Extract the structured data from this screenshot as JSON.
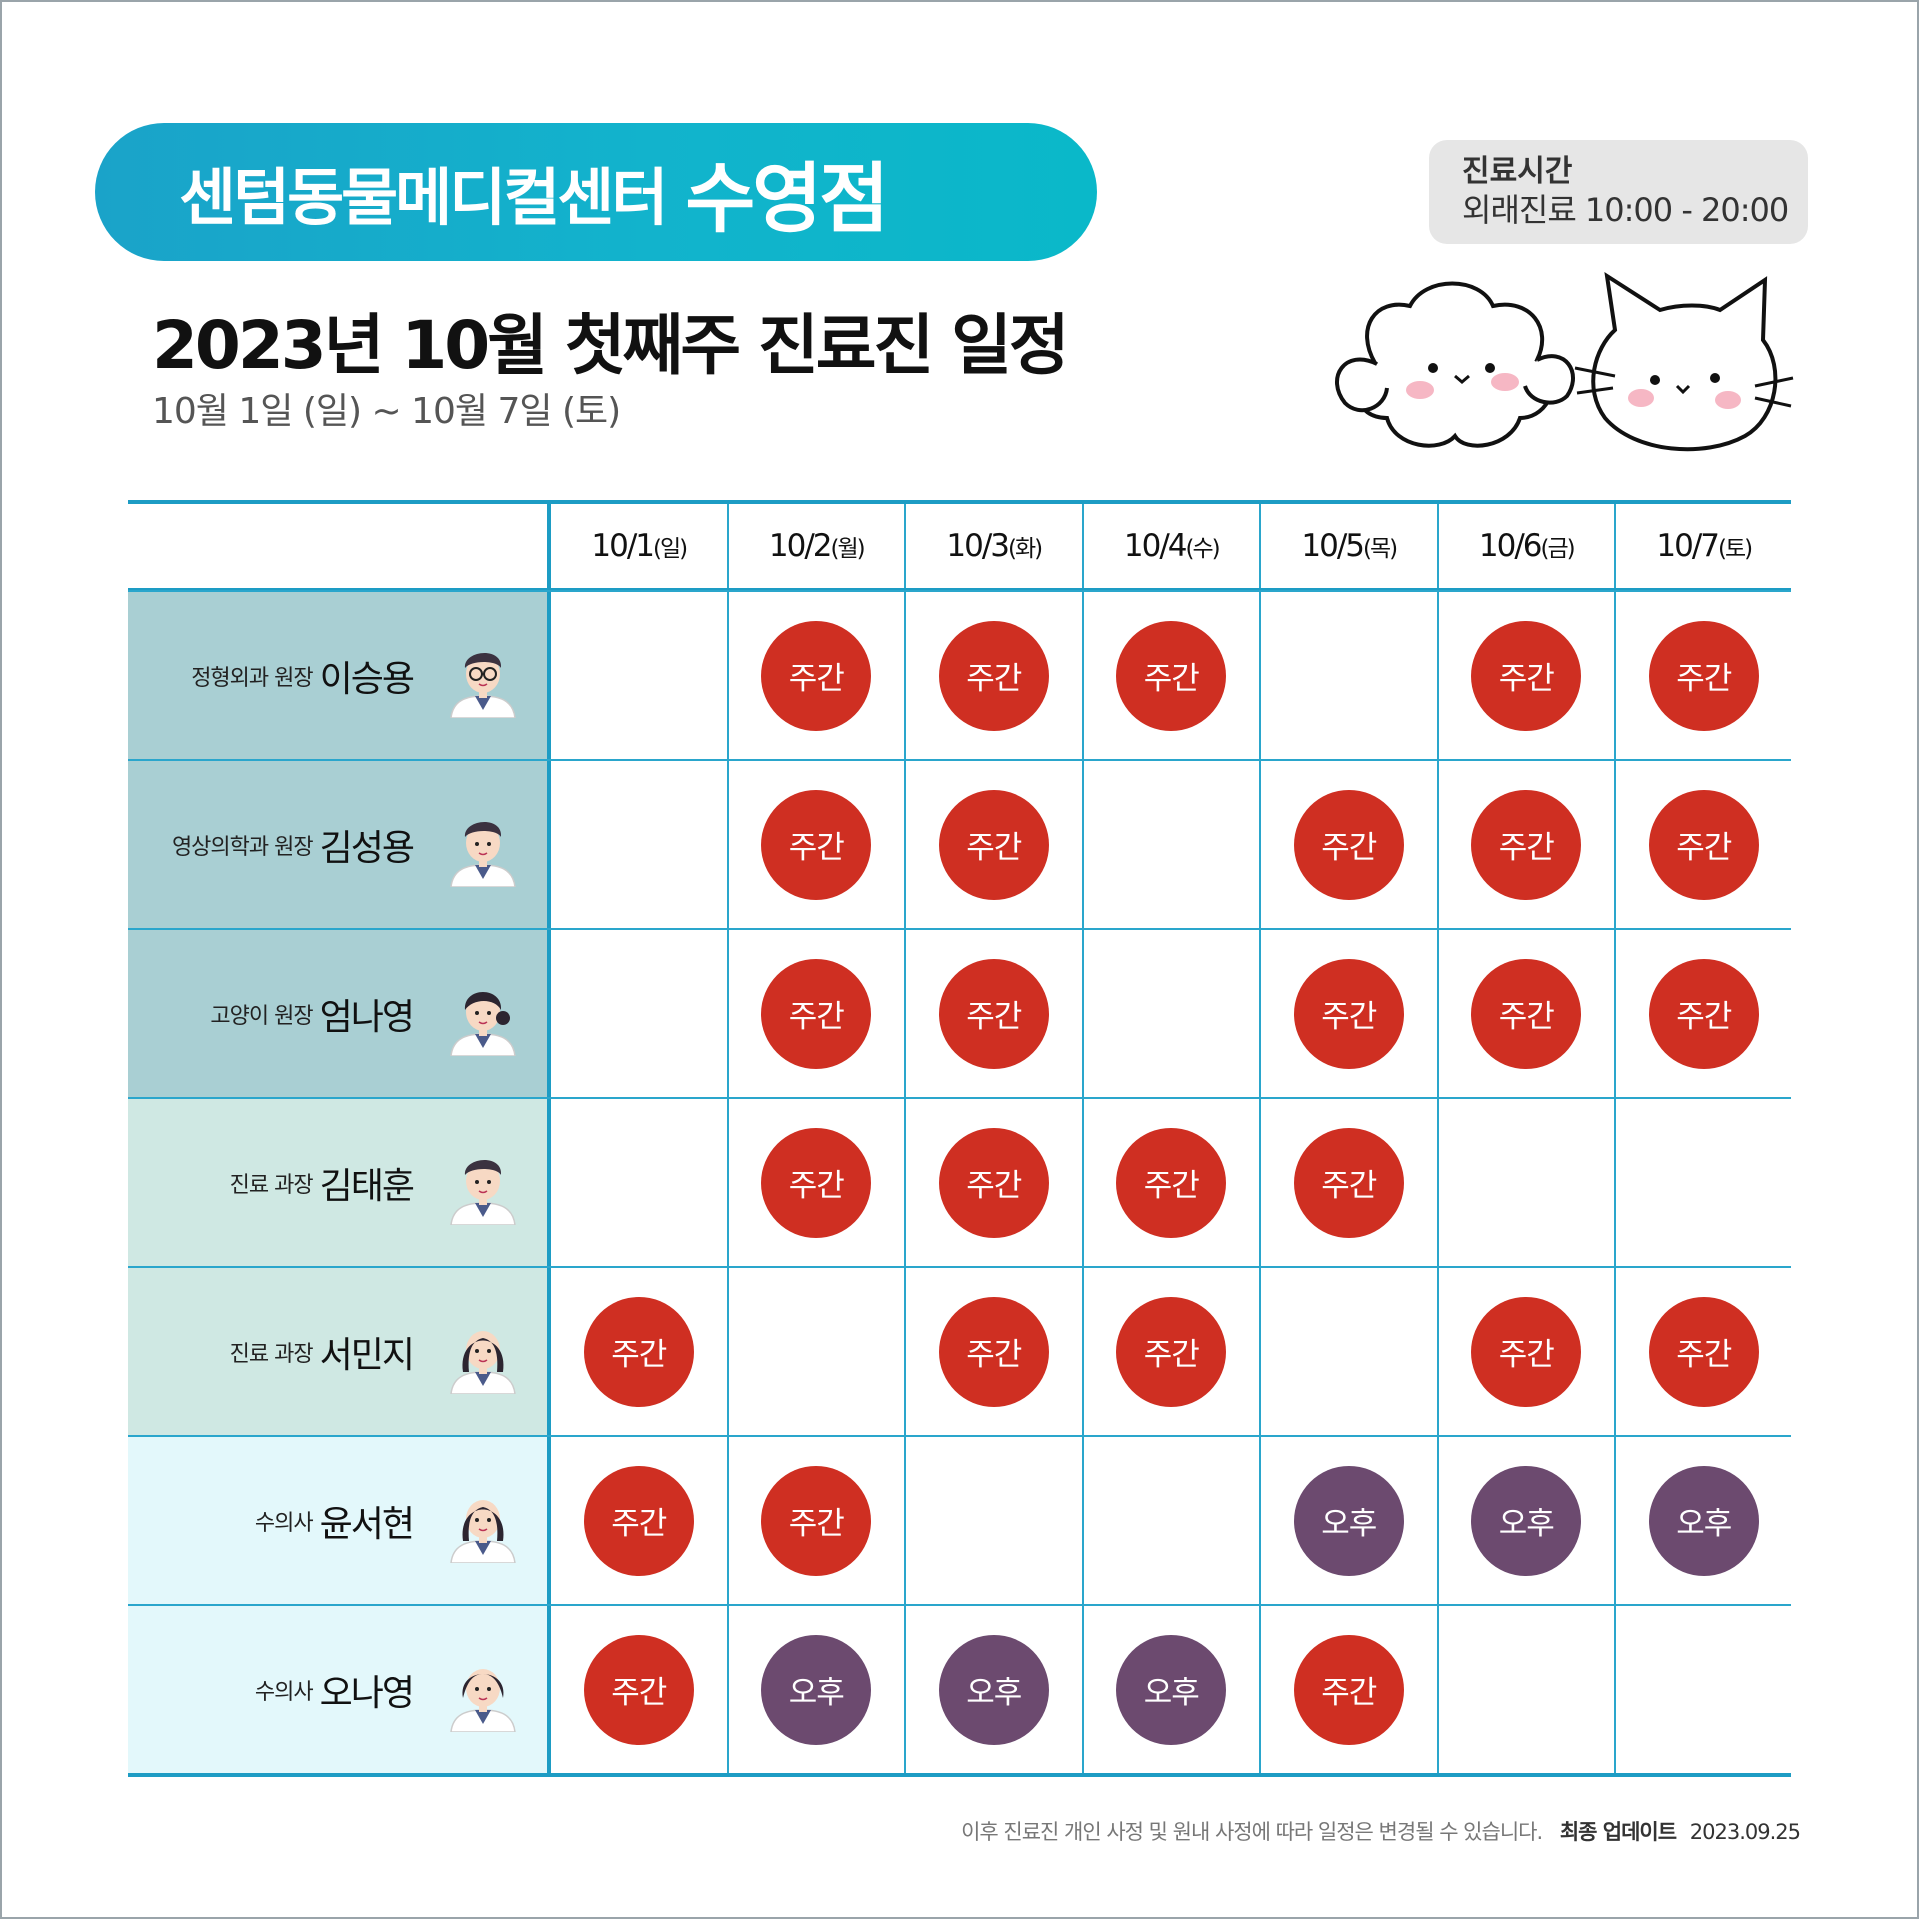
{
  "header": {
    "clinic_name": "센텀동물메디컬센터",
    "branch": "수영점",
    "title": "2023년 10월 첫째주 진료진 일정",
    "subtitle": "10월 1일 (일) ~ 10월 7일 (토)"
  },
  "hours": {
    "label": "진료시간",
    "value": "외래진료 10:00 - 20:00"
  },
  "colors": {
    "day_badge": "#cf2f22",
    "pm_badge": "#6c4a6f",
    "accent": "#1d9cc4"
  },
  "days": [
    {
      "date": "10/1",
      "dow": "(일)"
    },
    {
      "date": "10/2",
      "dow": "(월)"
    },
    {
      "date": "10/3",
      "dow": "(화)"
    },
    {
      "date": "10/4",
      "dow": "(수)"
    },
    {
      "date": "10/5",
      "dow": "(목)"
    },
    {
      "date": "10/6",
      "dow": "(금)"
    },
    {
      "date": "10/7",
      "dow": "(토)"
    }
  ],
  "doctors": [
    {
      "role": "정형외과 원장",
      "name": "이승용",
      "bg": "#a9cfd3",
      "avatar": "male-glasses",
      "shifts": [
        "",
        "주간",
        "주간",
        "주간",
        "",
        "주간",
        "주간"
      ]
    },
    {
      "role": "영상의학과 원장",
      "name": "김성용",
      "bg": "#a9cfd3",
      "avatar": "male",
      "shifts": [
        "",
        "주간",
        "주간",
        "",
        "주간",
        "주간",
        "주간"
      ]
    },
    {
      "role": "고양이 원장",
      "name": "엄나영",
      "bg": "#a9cfd3",
      "avatar": "female-bun",
      "shifts": [
        "",
        "주간",
        "주간",
        "",
        "주간",
        "주간",
        "주간"
      ]
    },
    {
      "role": "진료 과장",
      "name": "김태훈",
      "bg": "#cfe8e3",
      "avatar": "male",
      "shifts": [
        "",
        "주간",
        "주간",
        "주간",
        "주간",
        "",
        ""
      ]
    },
    {
      "role": "진료 과장",
      "name": "서민지",
      "bg": "#cfe8e3",
      "avatar": "female-long",
      "shifts": [
        "주간",
        "",
        "주간",
        "주간",
        "",
        "주간",
        "주간"
      ]
    },
    {
      "role": "수의사",
      "name": "윤서현",
      "bg": "#e3f8fb",
      "avatar": "female-long",
      "shifts": [
        "주간",
        "주간",
        "",
        "",
        "오후",
        "오후",
        "오후"
      ]
    },
    {
      "role": "수의사",
      "name": "오나영",
      "bg": "#e3f8fb",
      "avatar": "female-short",
      "shifts": [
        "주간",
        "오후",
        "오후",
        "오후",
        "주간",
        "",
        ""
      ]
    }
  ],
  "footer": {
    "notice": "이후 진료진 개인 사정 및 원내 사정에 따라 일정은 변경될 수 있습니다.",
    "update_label": "최종 업데이트",
    "update_date": "2023.09.25"
  }
}
